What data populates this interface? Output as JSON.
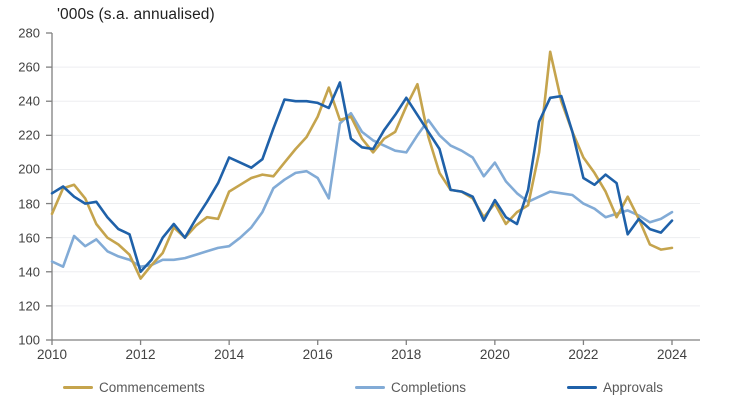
{
  "chart_data": {
    "type": "line",
    "title": "'000s (s.a. annualised)",
    "x_axis": {
      "start": "2010 Q1",
      "end": "2024 Q1",
      "frequency": "quarterly",
      "tick_labels": [
        2010,
        2012,
        2014,
        2016,
        2018,
        2020,
        2022,
        2024
      ]
    },
    "y_axis": {
      "min": 100,
      "max": 280,
      "step": 20,
      "tick_labels": [
        100,
        120,
        140,
        160,
        180,
        200,
        220,
        240,
        260,
        280
      ]
    },
    "grid": "horizontal-light",
    "legend_position": "bottom",
    "series": [
      {
        "name": "Commencements",
        "color": "#C5A44D",
        "values": [
          174,
          189,
          191,
          183,
          168,
          160,
          156,
          150,
          136,
          144,
          151,
          166,
          160,
          167,
          172,
          171,
          187,
          191,
          195,
          197,
          196,
          204,
          212,
          219,
          231,
          248,
          229,
          231,
          218,
          210,
          218,
          222,
          237,
          250,
          219,
          198,
          188,
          187,
          183,
          172,
          180,
          168,
          175,
          179,
          210,
          269,
          240,
          222,
          207,
          198,
          187,
          172,
          184,
          171,
          156,
          153,
          154
        ]
      },
      {
        "name": "Completions",
        "color": "#82ABD6",
        "values": [
          146,
          143,
          161,
          155,
          159,
          152,
          149,
          147,
          143,
          144,
          147,
          147,
          148,
          150,
          152,
          154,
          155,
          160,
          166,
          175,
          189,
          194,
          198,
          199,
          195,
          183,
          227,
          233,
          222,
          217,
          214,
          211,
          210,
          220,
          229,
          220,
          214,
          211,
          207,
          196,
          204,
          193,
          186,
          181,
          184,
          187,
          186,
          185,
          180,
          177,
          172,
          174,
          176,
          173,
          169,
          171,
          175
        ]
      },
      {
        "name": "Approvals",
        "color": "#1F61A9",
        "values": [
          186,
          190,
          184,
          180,
          181,
          172,
          165,
          162,
          140,
          147,
          160,
          168,
          160,
          171,
          181,
          192,
          207,
          204,
          201,
          206,
          224,
          241,
          240,
          240,
          239,
          236,
          251,
          218,
          213,
          212,
          223,
          232,
          242,
          232,
          222,
          212,
          188,
          187,
          184,
          170,
          182,
          172,
          168,
          188,
          228,
          242,
          243,
          222,
          195,
          191,
          197,
          192,
          162,
          171,
          165,
          163,
          170
        ]
      }
    ],
    "draw_order": [
      "Completions",
      "Commencements",
      "Approvals"
    ],
    "axis_color": "#808080",
    "gridline_color": "#EDEEF0",
    "label_color": "#424242",
    "title_color": "#212121",
    "legend_text_color": "#595959"
  },
  "layout_note": "line chart of Australian dwelling commencements, completions and approvals"
}
